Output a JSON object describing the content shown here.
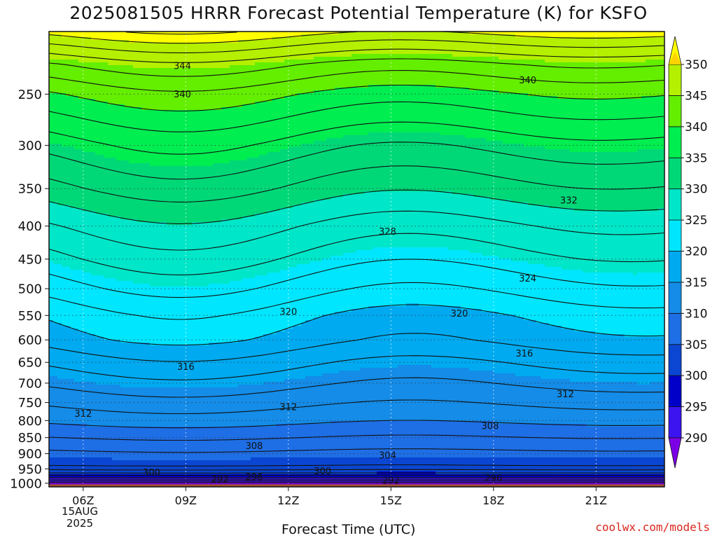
{
  "title": "2025081505 HRRR Forecast Potential Temperature (K) for KSFO",
  "credit": "coolwx.com/models",
  "chart_data": {
    "type": "contour",
    "title": "2025081505 HRRR Forecast Potential Temperature (K) for KSFO",
    "xlabel": "Forecast Time (UTC)",
    "x_ticks": [
      "06Z",
      "09Z",
      "12Z",
      "15Z",
      "18Z",
      "21Z"
    ],
    "x_tick_hours": [
      6,
      9,
      12,
      15,
      18,
      21
    ],
    "xlim": [
      5,
      23
    ],
    "date_label": [
      "15AUG",
      "2025"
    ],
    "y_ticks": [
      250,
      300,
      350,
      400,
      450,
      500,
      550,
      600,
      650,
      700,
      750,
      800,
      850,
      900,
      950,
      1000
    ],
    "ylim": [
      1013,
      200
    ],
    "yscale": "log",
    "colorbar_ticks": [
      290,
      295,
      300,
      305,
      310,
      315,
      320,
      325,
      330,
      335,
      340,
      345,
      350
    ],
    "fill_colors": {
      "285": "#7c00e6",
      "290": "#3c14f0",
      "295": "#0000c8",
      "300": "#0a46d2",
      "305": "#1e6ee6",
      "310": "#148ce8",
      "315": "#00aaf0",
      "320": "#00e6ff",
      "325": "#00e6c8",
      "330": "#00d878",
      "335": "#00ee50",
      "340": "#64ee00",
      "345": "#b4f000",
      "350": "#ffff00",
      "355": "#ffd200"
    },
    "surface_color": "#a0522d",
    "theta_profile": [
      {
        "p": 1013,
        "theta": 286
      },
      {
        "p": 1000,
        "theta": 289
      },
      {
        "p": 980,
        "theta": 296
      },
      {
        "p": 960,
        "theta": 301
      },
      {
        "p": 940,
        "theta": 304
      },
      {
        "p": 900,
        "theta": 305.5
      },
      {
        "p": 850,
        "theta": 308
      },
      {
        "p": 800,
        "theta": 310.5
      },
      {
        "p": 750,
        "theta": 312.5
      },
      {
        "p": 700,
        "theta": 314.5
      },
      {
        "p": 650,
        "theta": 316.5
      },
      {
        "p": 600,
        "theta": 319
      },
      {
        "p": 550,
        "theta": 320.5
      },
      {
        "p": 500,
        "theta": 323
      },
      {
        "p": 450,
        "theta": 325.5
      },
      {
        "p": 400,
        "theta": 328
      },
      {
        "p": 350,
        "theta": 331.5
      },
      {
        "p": 300,
        "theta": 335
      },
      {
        "p": 250,
        "theta": 340
      },
      {
        "p": 225,
        "theta": 344
      },
      {
        "p": 210,
        "theta": 348
      },
      {
        "p": 200,
        "theta": 351
      }
    ],
    "contour_labels": [
      {
        "text": "344",
        "hour": 8.9,
        "p": 226
      },
      {
        "text": "340",
        "hour": 8.9,
        "p": 250
      },
      {
        "text": "340",
        "hour": 19.0,
        "p": 238
      },
      {
        "text": "332",
        "hour": 20.2,
        "p": 365
      },
      {
        "text": "328",
        "hour": 14.9,
        "p": 408
      },
      {
        "text": "324",
        "hour": 19.0,
        "p": 482
      },
      {
        "text": "320",
        "hour": 12.0,
        "p": 543
      },
      {
        "text": "320",
        "hour": 17.0,
        "p": 546
      },
      {
        "text": "316",
        "hour": 9.0,
        "p": 660
      },
      {
        "text": "316",
        "hour": 18.9,
        "p": 630
      },
      {
        "text": "312",
        "hour": 6.0,
        "p": 780
      },
      {
        "text": "312",
        "hour": 12.0,
        "p": 762
      },
      {
        "text": "312",
        "hour": 20.1,
        "p": 728
      },
      {
        "text": "308",
        "hour": 11.0,
        "p": 875
      },
      {
        "text": "308",
        "hour": 17.9,
        "p": 815
      },
      {
        "text": "304",
        "hour": 14.9,
        "p": 905
      },
      {
        "text": "300",
        "hour": 8.0,
        "p": 962
      },
      {
        "text": "300",
        "hour": 13.0,
        "p": 958
      },
      {
        "text": "296",
        "hour": 11.0,
        "p": 978
      },
      {
        "text": "296",
        "hour": 18.0,
        "p": 982
      },
      {
        "text": "292",
        "hour": 10.0,
        "p": 985
      },
      {
        "text": "292",
        "hour": 15.0,
        "p": 990
      }
    ]
  }
}
